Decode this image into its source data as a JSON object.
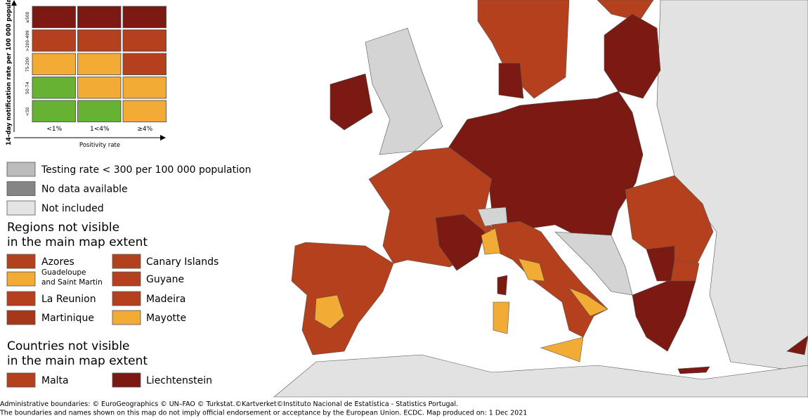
{
  "matrix": {
    "y_label": "14-day notification rate per 100 000 population",
    "x_label": "Positivity rate",
    "rows": [
      "≥500",
      ">200-499",
      "75-200",
      "50-74",
      "<50"
    ],
    "columns": [
      "<1%",
      "1<4%",
      "≥4%"
    ],
    "colors": [
      [
        "#7a1a13",
        "#7a1a13",
        "#7a1a13"
      ],
      [
        "#b5401d",
        "#b5401d",
        "#b5401d"
      ],
      [
        "#f2ab35",
        "#f2ab35",
        "#b5401d"
      ],
      [
        "#67b133",
        "#f2ab35",
        "#f2ab35"
      ],
      [
        "#67b133",
        "#67b133",
        "#f2ab35"
      ]
    ]
  },
  "legend": [
    {
      "label": "Testing rate < 300 per 100 000 population",
      "color": "#bcbcbc"
    },
    {
      "label": "No data available",
      "color": "#858585"
    },
    {
      "label": "Not included",
      "color": "#e4e4e4"
    }
  ],
  "regions": {
    "heading": [
      "Regions not visible",
      "in the main map extent"
    ],
    "items": [
      {
        "label": [
          "Azores"
        ],
        "color": "#b5401d"
      },
      {
        "label": [
          "Canary Islands"
        ],
        "color": "#b5401d"
      },
      {
        "label": [
          "Guadeloupe",
          "and Saint Martin"
        ],
        "color": "#f2ab35"
      },
      {
        "label": [
          "Guyane"
        ],
        "color": "#b5401d"
      },
      {
        "label": [
          "La Reunion"
        ],
        "color": "#b5401d"
      },
      {
        "label": [
          "Madeira"
        ],
        "color": "#b5401d"
      },
      {
        "label": [
          "Martinique"
        ],
        "color": "#a8361b"
      },
      {
        "label": [
          "Mayotte"
        ],
        "color": "#f2ab35"
      }
    ]
  },
  "countries": {
    "heading": [
      "Countries not visible",
      "in the main map extent"
    ],
    "items": [
      {
        "label": [
          "Malta"
        ],
        "color": "#b5401d"
      },
      {
        "label": [
          "Liechtenstein"
        ],
        "color": "#7a1a13"
      }
    ]
  },
  "footer": [
    "Administrative boundaries: © EuroGeographics © UN–FAO © Turkstat.©Kartverket©Instituto Nacional de Estatística - Statistics Portugal.",
    "The boundaries and names shown on this map do not imply official endorsement or acceptance by the European Union. ECDC. Map produced on: 1 Dec 2021"
  ]
}
